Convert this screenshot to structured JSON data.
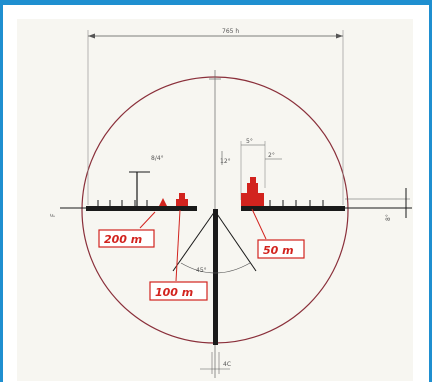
{
  "figure": {
    "range_labels": [
      "200 m",
      "100 m",
      "50 m"
    ],
    "dimensions": {
      "top_width": "765 h",
      "left_post": "8/4°",
      "center_gap_label": "12°",
      "gap_right_a": "5°",
      "gap_right_b": "2°",
      "right_mark": "8°",
      "bottom_mark": "4C",
      "angle": "45°"
    },
    "colors": {
      "frame": "#1f8fd0",
      "reticle": "#1a1a1a",
      "target": "#d2231e",
      "paper": "#f7f6f1"
    }
  }
}
